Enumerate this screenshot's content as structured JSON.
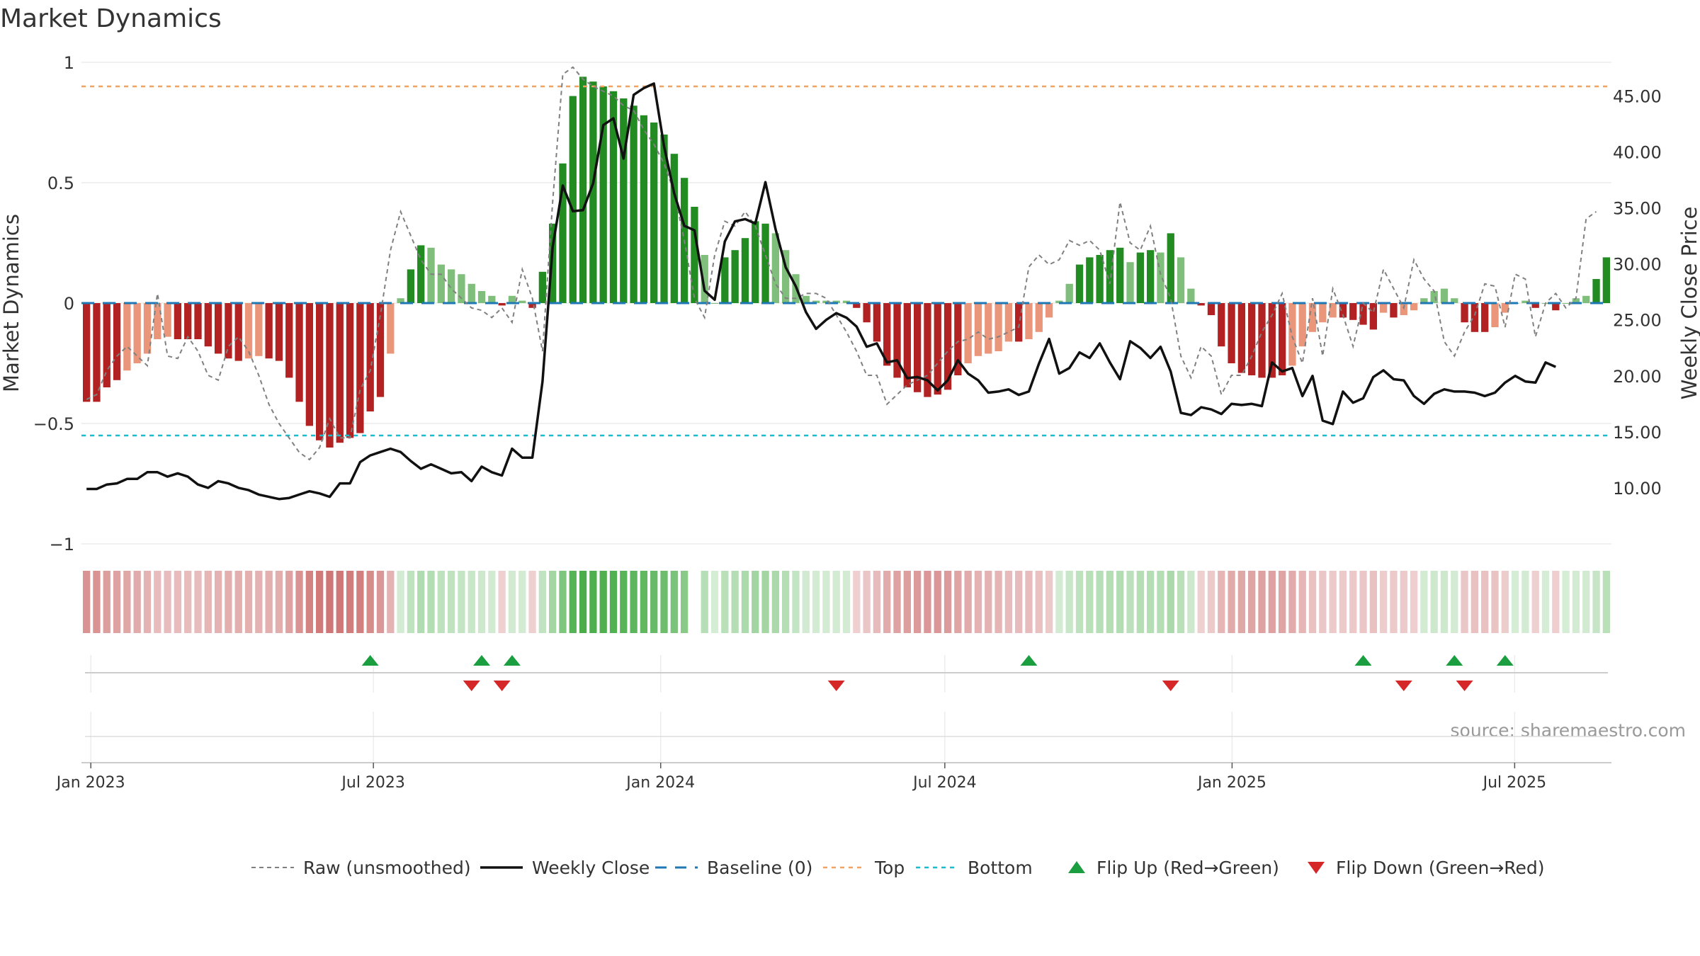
{
  "chart_data": {
    "type": "bar",
    "title": "Market Dynamics",
    "ylabel": "Market Dynamics",
    "y2label": "Weekly Close Price",
    "ylim": [
      -1,
      1
    ],
    "y2lim": [
      5,
      48
    ],
    "yticks": [
      {
        "v": 1,
        "label": "1"
      },
      {
        "v": 0.5,
        "label": "0.5"
      },
      {
        "v": 0,
        "label": "0"
      },
      {
        "v": -0.5,
        "label": "−0.5"
      },
      {
        "v": -1,
        "label": "−1"
      }
    ],
    "y2ticks": [
      {
        "v": 45,
        "label": "45.00"
      },
      {
        "v": 40,
        "label": "40.00"
      },
      {
        "v": 35,
        "label": "35.00"
      },
      {
        "v": 30,
        "label": "30.00"
      },
      {
        "v": 25,
        "label": "25.00"
      },
      {
        "v": 20,
        "label": "20.00"
      },
      {
        "v": 15,
        "label": "15.00"
      },
      {
        "v": 10,
        "label": "10.00"
      }
    ],
    "xticks": [
      "Jan 2023",
      "Jul 2023",
      "Jan 2024",
      "Jul 2024",
      "Jan 2025",
      "Jul 2025"
    ],
    "x_start": "2022-12-26",
    "x_end": "2025-09-01",
    "top_level": 0.9,
    "bottom_level": -0.55,
    "grid": true,
    "legend_position": "bottom",
    "dynamics": [
      -0.41,
      -0.41,
      -0.35,
      -0.32,
      -0.28,
      -0.25,
      -0.21,
      -0.15,
      -0.14,
      -0.15,
      -0.15,
      -0.15,
      -0.18,
      -0.21,
      -0.23,
      -0.24,
      -0.23,
      -0.22,
      -0.23,
      -0.24,
      -0.31,
      -0.41,
      -0.51,
      -0.57,
      -0.6,
      -0.58,
      -0.56,
      -0.54,
      -0.45,
      -0.39,
      -0.21,
      0.02,
      0.14,
      0.24,
      0.23,
      0.16,
      0.14,
      0.12,
      0.08,
      0.05,
      0.03,
      -0.01,
      0.03,
      0.01,
      -0.02,
      0.13,
      0.33,
      0.58,
      0.86,
      0.94,
      0.92,
      0.9,
      0.88,
      0.85,
      0.82,
      0.78,
      0.75,
      0.7,
      0.62,
      0.52,
      0.4,
      0.2,
      0,
      0.19,
      0.22,
      0.27,
      0.34,
      0.33,
      0.29,
      0.22,
      0.12,
      0.03,
      0.01,
      0.01,
      0.01,
      0.01,
      -0.02,
      -0.08,
      -0.16,
      -0.26,
      -0.31,
      -0.35,
      -0.37,
      -0.39,
      -0.38,
      -0.36,
      -0.3,
      -0.25,
      -0.22,
      -0.21,
      -0.2,
      -0.16,
      -0.16,
      -0.15,
      -0.12,
      -0.06,
      0.01,
      0.08,
      0.16,
      0.19,
      0.2,
      0.22,
      0.23,
      0.17,
      0.21,
      0.22,
      0.21,
      0.29,
      0.19,
      0.06,
      -0.01,
      -0.05,
      -0.18,
      -0.25,
      -0.29,
      -0.3,
      -0.31,
      -0.31,
      -0.3,
      -0.26,
      -0.18,
      -0.12,
      -0.08,
      -0.06,
      -0.06,
      -0.07,
      -0.09,
      -0.11,
      -0.04,
      -0.06,
      -0.05,
      -0.03,
      0.02,
      0.05,
      0.06,
      0.02,
      -0.08,
      -0.12,
      -0.12,
      -0.1,
      -0.04,
      0,
      0.01,
      -0.02,
      0,
      -0.03,
      0,
      0.02,
      0.03,
      0.1,
      0.19
    ],
    "raw": [
      -0.4,
      -0.38,
      -0.28,
      -0.22,
      -0.18,
      -0.22,
      -0.26,
      0.04,
      -0.22,
      -0.23,
      -0.14,
      -0.2,
      -0.3,
      -0.32,
      -0.18,
      -0.14,
      -0.2,
      -0.3,
      -0.42,
      -0.5,
      -0.56,
      -0.62,
      -0.65,
      -0.6,
      -0.48,
      -0.56,
      -0.56,
      -0.36,
      -0.28,
      -0.05,
      0.22,
      0.38,
      0.28,
      0.18,
      0.12,
      0.12,
      0.06,
      0.02,
      -0.02,
      -0.03,
      -0.06,
      -0.02,
      -0.08,
      0.14,
      0.02,
      -0.2,
      0.42,
      0.95,
      0.98,
      0.93,
      0.9,
      0.88,
      0.86,
      0.82,
      0.8,
      0.72,
      0.66,
      0.58,
      0.46,
      0.26,
      0.02,
      -0.06,
      0.2,
      0.34,
      0.32,
      0.38,
      0.32,
      0.2,
      0.08,
      0.02,
      0.02,
      0.04,
      0.04,
      0.02,
      -0.05,
      -0.12,
      -0.2,
      -0.3,
      -0.3,
      -0.42,
      -0.38,
      -0.34,
      -0.32,
      -0.3,
      -0.25,
      -0.2,
      -0.16,
      -0.15,
      -0.12,
      -0.15,
      -0.14,
      -0.12,
      -0.1,
      0.15,
      0.2,
      0.16,
      0.18,
      0.26,
      0.24,
      0.26,
      0.22,
      0.08,
      0.42,
      0.25,
      0.22,
      0.32,
      0.12,
      0.02,
      -0.22,
      -0.31,
      -0.18,
      -0.22,
      -0.38,
      -0.3,
      -0.3,
      -0.22,
      -0.12,
      -0.05,
      0.04,
      -0.14,
      -0.25,
      0.02,
      -0.22,
      0.06,
      -0.05,
      -0.18,
      0.0,
      -0.04,
      0.14,
      0.06,
      -0.02,
      0.18,
      0.1,
      0.05,
      -0.16,
      -0.22,
      -0.12,
      -0.05,
      0.08,
      0.07,
      -0.1,
      0.12,
      0.1,
      -0.14,
      0.0,
      0.04,
      -0.02,
      0.02,
      0.35,
      0.38
    ],
    "close": [
      9.9,
      9.9,
      10.3,
      10.4,
      10.8,
      10.8,
      11.4,
      11.4,
      11.0,
      11.3,
      11.0,
      10.3,
      10.0,
      10.6,
      10.4,
      10.0,
      9.8,
      9.4,
      9.2,
      9.0,
      9.1,
      9.4,
      9.7,
      9.5,
      9.2,
      10.4,
      10.4,
      12.3,
      12.9,
      13.2,
      13.5,
      13.2,
      12.4,
      11.7,
      12.1,
      11.7,
      11.3,
      11.4,
      10.6,
      11.9,
      11.4,
      11.1,
      13.5,
      12.7,
      12.7,
      19.5,
      31.5,
      37.0,
      34.7,
      34.8,
      37.2,
      42.4,
      43.0,
      39.4,
      45.1,
      45.7,
      46.1,
      40.5,
      36.3,
      33.4,
      33.0,
      27.6,
      26.8,
      32.0,
      33.8,
      34.0,
      33.6,
      37.3,
      33.1,
      29.7,
      28.0,
      25.7,
      24.2,
      25.0,
      25.6,
      25.2,
      24.4,
      22.6,
      22.9,
      21.2,
      21.4,
      19.8,
      19.9,
      19.6,
      18.7,
      19.6,
      21.4,
      20.2,
      19.6,
      18.5,
      18.6,
      18.8,
      18.3,
      18.6,
      21.1,
      23.3,
      20.2,
      20.7,
      22.1,
      21.6,
      22.9,
      21.2,
      19.7,
      23.1,
      22.5,
      21.6,
      22.6,
      20.4,
      16.7,
      16.5,
      17.2,
      17.0,
      16.6,
      17.5,
      17.4,
      17.5,
      17.3,
      21.2,
      20.4,
      20.7,
      18.2,
      20.0,
      16.0,
      15.7,
      18.6,
      17.6,
      18.0,
      19.9,
      20.5,
      19.7,
      19.6,
      18.2,
      17.5,
      18.4,
      18.8,
      18.6,
      18.6,
      18.5,
      18.2,
      18.5,
      19.4,
      20.0,
      19.5,
      19.4,
      21.2,
      20.8
    ],
    "regime_gap_index": 60,
    "flip_up_index": [
      28,
      39,
      42,
      93,
      126,
      135,
      140
    ],
    "flip_down_index": [
      38,
      41,
      74,
      107,
      130,
      136
    ],
    "source": "source: sharemaestro.com",
    "colors": {
      "strong_red": "#b22222",
      "weak_red": "#e9967a",
      "strong_green": "#228b22",
      "weak_green": "#7fbf7b",
      "raw": "#808080",
      "close": "#111111",
      "baseline": "#1f77b4",
      "top": "#f4a261",
      "bottom": "#17becf",
      "flip_up": "#1a9e3f",
      "flip_down": "#d62728"
    },
    "legend": [
      {
        "label": "Raw (unsmoothed)",
        "style": "raw"
      },
      {
        "label": "Weekly Close",
        "style": "close"
      },
      {
        "label": "Baseline (0)",
        "style": "baseline"
      },
      {
        "label": "Top",
        "style": "top"
      },
      {
        "label": "Bottom",
        "style": "bottom"
      },
      {
        "label": "Flip Up (Red→Green)",
        "style": "flip_up"
      },
      {
        "label": "Flip Down (Green→Red)",
        "style": "flip_down"
      }
    ]
  }
}
